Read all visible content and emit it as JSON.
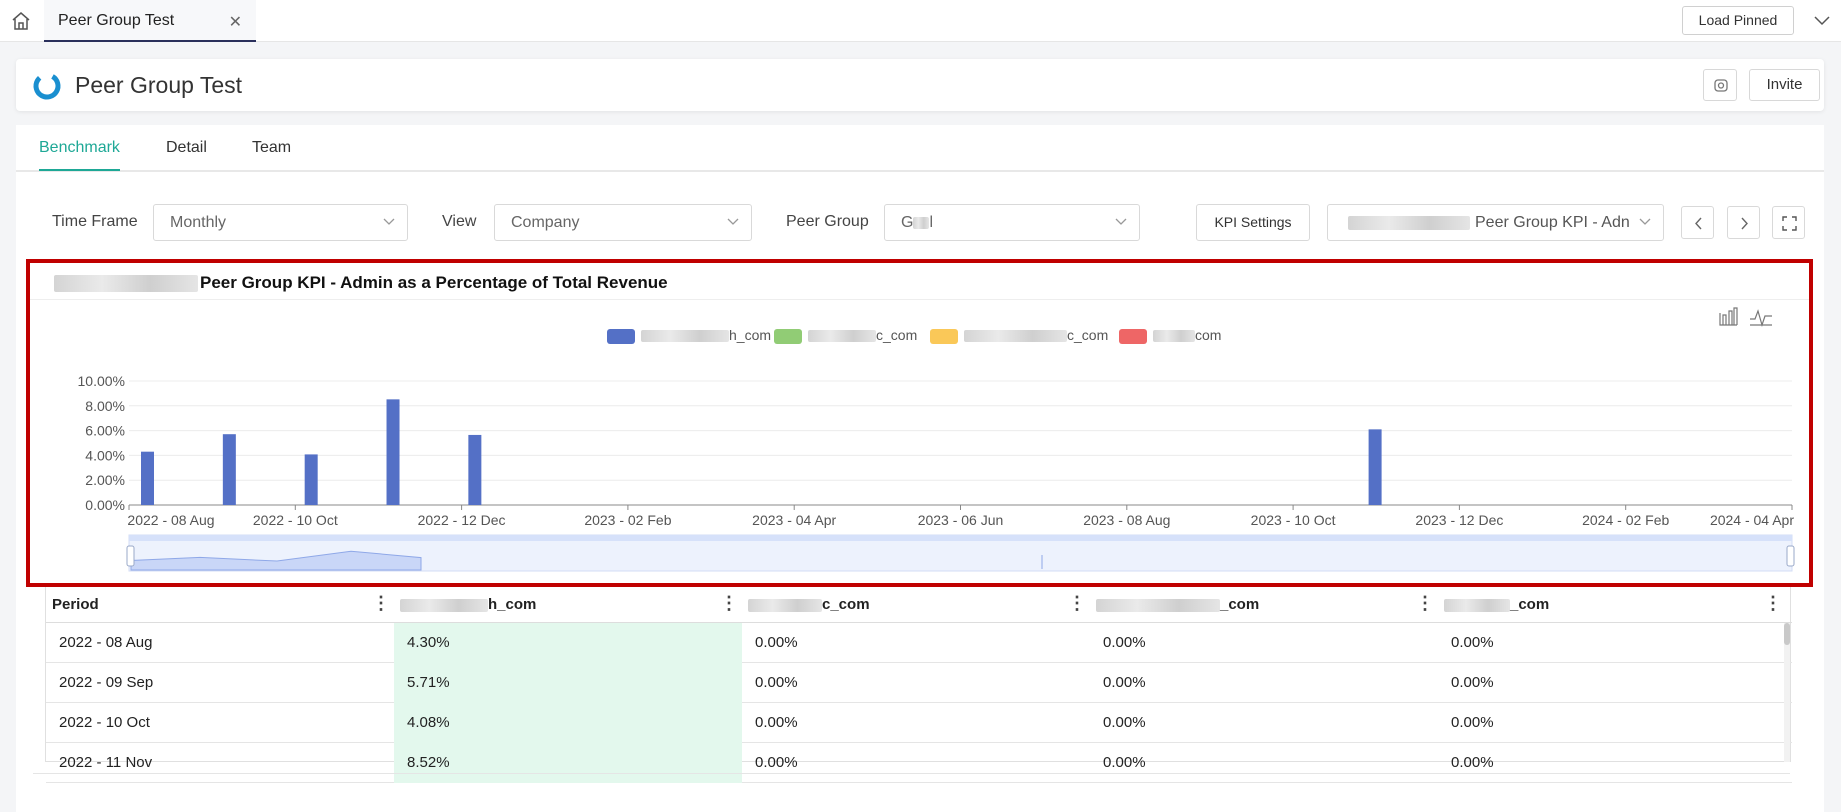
{
  "topbar": {
    "tab_label": "Peer Group Test",
    "load_pinned": "Load Pinned"
  },
  "header": {
    "title": "Peer Group Test",
    "invite": "Invite"
  },
  "nav": {
    "tabs": [
      "Benchmark",
      "Detail",
      "Team"
    ],
    "active": "Benchmark"
  },
  "filters": {
    "time_frame_label": "Time Frame",
    "time_frame_value": "Monthly",
    "view_label": "View",
    "view_value": "Company",
    "peer_group_label": "Peer Group",
    "peer_group_value": "G",
    "peer_group_value_tail": "l",
    "kpi_settings": "KPI Settings",
    "kpi_select_value": "Peer Group KPI - Adn"
  },
  "colors": {
    "accent": "#1ea896",
    "series1": "#5470c6",
    "series2": "#91cc75",
    "series3": "#fac858",
    "series4": "#ee6666",
    "highlight_border": "#c00000",
    "cell_highlight": "#e3f8ed"
  },
  "chart_data": {
    "type": "bar",
    "title": "Peer Group KPI - Admin as a Percentage of Total Revenue",
    "legend": [
      "h_com",
      "c_com",
      "c_com",
      "com"
    ],
    "xlabel": "",
    "ylabel": "",
    "ylim": [
      0,
      10
    ],
    "y_ticks": [
      "10.00%",
      "8.00%",
      "6.00%",
      "4.00%",
      "2.00%",
      "0.00%"
    ],
    "x_tick_labels": [
      "2022 - 08 Aug",
      "2022 - 10 Oct",
      "2022 - 12 Dec",
      "2023 - 02 Feb",
      "2023 - 04 Apr",
      "2023 - 06 Jun",
      "2023 - 08 Aug",
      "2023 - 10 Oct",
      "2023 - 12 Dec",
      "2024 - 02 Feb",
      "2024 - 04 Apr"
    ],
    "x_month_count": 21,
    "series": [
      {
        "name": "h_com",
        "values": [
          4.3,
          5.71,
          4.08,
          8.52,
          5.65,
          0,
          0,
          0,
          0,
          0,
          0,
          0,
          0,
          0,
          0,
          6.1,
          0,
          0,
          0,
          0,
          0
        ]
      },
      {
        "name": "c_com",
        "values": [
          0,
          0,
          0,
          0,
          0,
          0,
          0,
          0,
          0,
          0,
          0,
          0,
          0,
          0,
          0,
          0,
          0,
          0,
          0,
          0,
          0
        ]
      },
      {
        "name": "c_com",
        "values": [
          0,
          0,
          0,
          0,
          0,
          0,
          0,
          0,
          0,
          0,
          0,
          0,
          0,
          0,
          0,
          0,
          0,
          0,
          0,
          0,
          0
        ]
      },
      {
        "name": "com",
        "values": [
          0,
          0,
          0,
          0,
          0,
          0,
          0,
          0,
          0,
          0,
          0,
          0,
          0,
          0,
          0,
          0,
          0,
          0,
          0,
          0,
          0
        ]
      }
    ]
  },
  "table": {
    "headers": [
      "Period",
      "h_com",
      "c_com",
      "_com",
      "_com"
    ],
    "rows": [
      [
        "2022 - 08 Aug",
        "4.30%",
        "0.00%",
        "0.00%",
        "0.00%"
      ],
      [
        "2022 - 09 Sep",
        "5.71%",
        "0.00%",
        "0.00%",
        "0.00%"
      ],
      [
        "2022 - 10 Oct",
        "4.08%",
        "0.00%",
        "0.00%",
        "0.00%"
      ],
      [
        "2022 - 11 Nov",
        "8.52%",
        "0.00%",
        "0.00%",
        "0.00%"
      ]
    ]
  }
}
